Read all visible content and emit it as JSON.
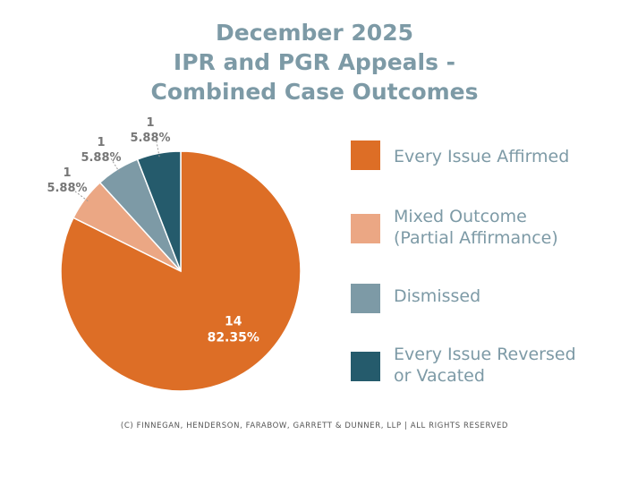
{
  "chart_data": {
    "type": "pie",
    "title": [
      "December 2025",
      "IPR and PGR Appeals -",
      "Combined Case Outcomes"
    ],
    "slices": [
      {
        "label": "Every Issue Affirmed",
        "value": 14,
        "percent": "82.35%",
        "color": "#dd6e26"
      },
      {
        "label": "Mixed Outcome (Partial Affirmance)",
        "value": 1,
        "percent": "5.88%",
        "color": "#eba784"
      },
      {
        "label": "Dismissed",
        "value": 1,
        "percent": "5.88%",
        "color": "#7d9aa6"
      },
      {
        "label": "Every Issue Reversed or Vacated",
        "value": 1,
        "percent": "5.88%",
        "color": "#255b6c"
      }
    ],
    "legend": {
      "placement": "right",
      "entries": [
        {
          "lines": [
            "Every Issue Affirmed"
          ],
          "color": "#dd6e26"
        },
        {
          "lines": [
            "Mixed Outcome",
            "(Partial Affirmance)"
          ],
          "color": "#eba784"
        },
        {
          "lines": [
            "Dismissed"
          ],
          "color": "#7d9aa6"
        },
        {
          "lines": [
            "Every Issue Reversed",
            "or Vacated"
          ],
          "color": "#255b6c"
        }
      ]
    }
  },
  "footer": "(c) Finnegan, Henderson, Farabow, Garrett & Dunner, LLP | All rights reserved",
  "colors": {
    "title": "#7d9aa6",
    "label_dark": "#777777",
    "label_light": "#ffffff"
  }
}
